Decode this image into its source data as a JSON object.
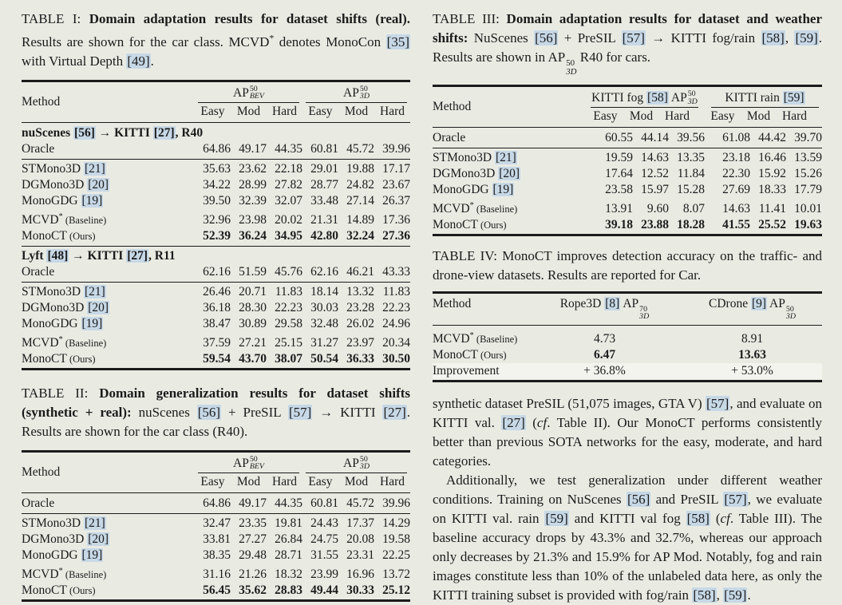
{
  "meta": {
    "colors": {
      "page_bg": "#e9ebe3",
      "text_ink": "#1b1b1b",
      "citation_highlight": "#c7d8e6",
      "improvement_row_highlight": "#f3f4ee"
    }
  },
  "tables": {
    "t1": {
      "caption": [
        {
          "t": "TABLE I: "
        },
        {
          "t": "Domain adaptation results for dataset shifts (real).",
          "b": true
        },
        {
          "t": " Results are shown for the car class. MCVD* denotes MonoCon [35] with Virtual Depth [49]."
        }
      ],
      "header": {
        "method": "Method",
        "g1p": "AP",
        "g1sup": "50",
        "g1sub": "BEV",
        "g2p": "AP",
        "g2sup": "50",
        "g2sub": "3D",
        "c0": "Easy",
        "c1": "Mod",
        "c2": "Hard",
        "c3": "Easy",
        "c4": "Mod",
        "c5": "Hard"
      },
      "rows": [
        {
          "type": "section",
          "label": "nuScenes [56] → KITTI [27], R40"
        },
        {
          "type": "row",
          "label": "Oracle",
          "values": [
            "64.86",
            "49.17",
            "44.35",
            "60.81",
            "45.72",
            "39.96"
          ]
        },
        {
          "type": "rule"
        },
        {
          "type": "row",
          "label": "STMono3D [21]",
          "values": [
            "35.63",
            "23.62",
            "22.18",
            "29.01",
            "19.88",
            "17.17"
          ]
        },
        {
          "type": "row",
          "label": "DGMono3D [20]",
          "values": [
            "34.22",
            "28.99",
            "27.82",
            "28.77",
            "24.82",
            "23.67"
          ]
        },
        {
          "type": "row",
          "label": "MonoGDG [19]",
          "values": [
            "39.50",
            "32.39",
            "32.07",
            "33.48",
            "27.14",
            "26.37"
          ]
        },
        {
          "type": "row",
          "label": "MCVD*",
          "note": " (Baseline)",
          "values": [
            "32.96",
            "23.98",
            "20.02",
            "21.31",
            "14.89",
            "17.36"
          ]
        },
        {
          "type": "row",
          "label": "MonoCT",
          "note": " (Ours)",
          "bold": true,
          "values": [
            "52.39",
            "36.24",
            "34.95",
            "42.80",
            "32.24",
            "27.36"
          ]
        },
        {
          "type": "rule"
        },
        {
          "type": "section",
          "label": "Lyft [48] → KITTI [27], R11"
        },
        {
          "type": "row",
          "label": "Oracle",
          "values": [
            "62.16",
            "51.59",
            "45.76",
            "62.16",
            "46.21",
            "43.33"
          ]
        },
        {
          "type": "rule"
        },
        {
          "type": "row",
          "label": "STMono3D [21]",
          "values": [
            "26.46",
            "20.71",
            "11.83",
            "18.14",
            "13.32",
            "11.83"
          ]
        },
        {
          "type": "row",
          "label": "DGMono3D [20]",
          "values": [
            "36.18",
            "28.30",
            "22.23",
            "30.03",
            "23.28",
            "22.23"
          ]
        },
        {
          "type": "row",
          "label": "MonoGDG [19]",
          "values": [
            "38.47",
            "30.89",
            "29.58",
            "32.48",
            "26.02",
            "24.96"
          ]
        },
        {
          "type": "row",
          "label": "MCVD*",
          "note": " (Baseline)",
          "values": [
            "37.59",
            "27.21",
            "25.15",
            "31.27",
            "23.97",
            "20.34"
          ]
        },
        {
          "type": "row",
          "label": "MonoCT",
          "note": " (Ours)",
          "bold": true,
          "values": [
            "59.54",
            "43.70",
            "38.07",
            "50.54",
            "36.33",
            "30.50"
          ]
        }
      ]
    },
    "t2": {
      "caption": [
        {
          "t": "TABLE II: "
        },
        {
          "t": "Domain generalization results for dataset shifts (synthetic + real):",
          "b": true
        },
        {
          "t": " nuScenes [56] + PreSIL [57] → KITTI [27]. Results are shown for the car class (R40)."
        }
      ],
      "header": {
        "method": "Method",
        "g1p": "AP",
        "g1sup": "50",
        "g1sub": "BEV",
        "g2p": "AP",
        "g2sup": "50",
        "g2sub": "3D",
        "c0": "Easy",
        "c1": "Mod",
        "c2": "Hard",
        "c3": "Easy",
        "c4": "Mod",
        "c5": "Hard"
      },
      "rows": [
        {
          "type": "row",
          "label": "Oracle",
          "values": [
            "64.86",
            "49.17",
            "44.35",
            "60.81",
            "45.72",
            "39.96"
          ]
        },
        {
          "type": "rule"
        },
        {
          "type": "row",
          "label": "STMono3D [21]",
          "values": [
            "32.47",
            "23.35",
            "19.81",
            "24.43",
            "17.37",
            "14.29"
          ]
        },
        {
          "type": "row",
          "label": "DGMono3D [20]",
          "values": [
            "33.81",
            "27.27",
            "26.84",
            "24.75",
            "20.08",
            "19.58"
          ]
        },
        {
          "type": "row",
          "label": "MonoGDG [19]",
          "values": [
            "38.35",
            "29.48",
            "28.71",
            "31.55",
            "23.31",
            "22.25"
          ]
        },
        {
          "type": "row",
          "label": "MCVD*",
          "note": " (Baseline)",
          "values": [
            "31.16",
            "21.26",
            "18.32",
            "23.99",
            "16.96",
            "13.72"
          ]
        },
        {
          "type": "row",
          "label": "MonoCT",
          "note": " (Ours)",
          "bold": true,
          "values": [
            "56.45",
            "35.62",
            "28.83",
            "49.44",
            "30.33",
            "25.12"
          ]
        }
      ]
    },
    "t3": {
      "caption": [
        {
          "t": "TABLE III: "
        },
        {
          "t": "Domain adaptation results for dataset and weather shifts:",
          "b": true
        },
        {
          "t": " NuScenes [56] + PreSIL [57] → KITTI fog/rain [58], [59]. Results are shown in "
        },
        {
          "t": "AP",
          "ss": [
            "50",
            "3D"
          ]
        },
        {
          "t": " R40 for cars."
        }
      ],
      "header": {
        "method": "Method",
        "g1p": "KITTI fog [58] AP",
        "g1sup": "50",
        "g1sub": "3D",
        "g2p": "KITTI rain [59]",
        "g2sup": "",
        "g2sub": "",
        "c0": "Easy",
        "c1": "Mod",
        "c2": "Hard",
        "c3": "Easy",
        "c4": "Mod",
        "c5": "Hard"
      },
      "rows": [
        {
          "type": "row",
          "label": "Oracle",
          "values": [
            "60.55",
            "44.14",
            "39.56",
            "61.08",
            "44.42",
            "39.70"
          ]
        },
        {
          "type": "rule"
        },
        {
          "type": "row",
          "label": "STMono3D [21]",
          "values": [
            "19.59",
            "14.63",
            "13.35",
            "23.18",
            "16.46",
            "13.59"
          ]
        },
        {
          "type": "row",
          "label": "DGMono3D [20]",
          "values": [
            "17.64",
            "12.52",
            "11.84",
            "22.30",
            "15.92",
            "15.26"
          ]
        },
        {
          "type": "row",
          "label": "MonoGDG [19]",
          "values": [
            "23.58",
            "15.97",
            "15.28",
            "27.69",
            "18.33",
            "17.79"
          ]
        },
        {
          "type": "row",
          "label": "MCVD*",
          "note": " (Baseline)",
          "values": [
            "13.91",
            "9.60",
            "8.07",
            "14.63",
            "11.41",
            "10.01"
          ]
        },
        {
          "type": "row",
          "label": "MonoCT",
          "note": " (Ours)",
          "bold": true,
          "values": [
            "39.18",
            "23.88",
            "18.28",
            "41.55",
            "25.52",
            "19.63"
          ]
        }
      ]
    },
    "t4": {
      "caption": [
        {
          "t": "TABLE IV: MonoCT improves detection accuracy on the traffic- and drone-view datasets. Results are reported for Car."
        }
      ],
      "header": {
        "method": "Method",
        "c1p": "Rope3D [8] AP",
        "c1sup": "70",
        "c1sub": "3D",
        "c2p": "CDrone [9] AP",
        "c2sup": "50",
        "c2sub": "3D"
      },
      "rows": [
        {
          "type": "row",
          "label": "MCVD*",
          "note": " (Baseline)",
          "values": [
            "4.73",
            "8.91"
          ]
        },
        {
          "type": "row",
          "label": "MonoCT",
          "note": " (Ours)",
          "bold": true,
          "values": [
            "6.47",
            "13.63"
          ]
        },
        {
          "type": "row",
          "label": "Improvement",
          "hl": true,
          "values": [
            "+ 36.8%",
            "+ 53.0%"
          ]
        }
      ]
    }
  },
  "body_text": {
    "p1": [
      {
        "t": "synthetic dataset PreSIL (51,075 images, GTA V) [57], and evaluate on KITTI val. [27] ("
      },
      {
        "t": "cf",
        "i": true
      },
      {
        "t": ". Table II). Our MonoCT performs consistently better than previous SOTA networks for the easy, moderate, and hard categories."
      }
    ],
    "p2": [
      {
        "t": "Additionally, we test generalization under different weather conditions. Training on NuScenes [56] and PreSIL [57], we evaluate on KITTI val. rain [59] and KITTI val fog [58] ("
      },
      {
        "t": "cf",
        "i": true
      },
      {
        "t": ". Table III). The baseline accuracy drops by 43.3% and 32.7%, whereas our approach only decreases by 21.3% and 15.9% for AP Mod. Notably, fog and rain images constitute less than 10% of the unlabeled data here, as only the KITTI training subset is provided with fog/rain [58], [59]."
      }
    ]
  }
}
